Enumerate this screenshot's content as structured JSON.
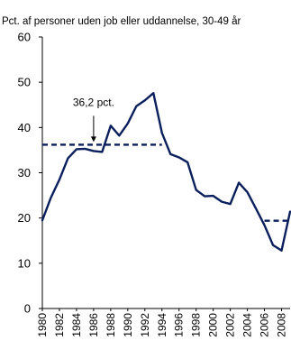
{
  "chart_data": {
    "type": "line",
    "title": "Pct. af personer uden job eller uddannelse, 30-49 år",
    "xlabel": "",
    "ylabel": "",
    "ylim": [
      0,
      60
    ],
    "yticks": [
      "0",
      "10",
      "20",
      "30",
      "40",
      "50",
      "60"
    ],
    "xticks": [
      "1980",
      "1982",
      "1984",
      "1986",
      "1988",
      "1990",
      "1992",
      "1994",
      "1996",
      "1998",
      "2000",
      "2002",
      "2004",
      "2006",
      "2008"
    ],
    "grid": false,
    "line_color": "#0a1f5c",
    "series": [
      {
        "x": [
          1980,
          1981,
          1982,
          1983,
          1984,
          1985,
          1986,
          1987,
          1988,
          1989,
          1990,
          1991,
          1992,
          1993,
          1994,
          1995,
          1996,
          1997,
          1998,
          1999,
          2000,
          2001,
          2002,
          2003,
          2004,
          2005,
          2006,
          2007,
          2008,
          2009
        ],
        "y": [
          19.5,
          24.5,
          28.5,
          33.2,
          35.2,
          35.3,
          34.8,
          34.6,
          40.4,
          38.2,
          40.9,
          44.7,
          46.0,
          47.6,
          38.8,
          34.1,
          33.4,
          32.3,
          26.2,
          24.8,
          24.9,
          23.6,
          23.1,
          27.8,
          25.7,
          22.1,
          18.4,
          14.0,
          12.8,
          21.4
        ]
      }
    ],
    "reference_lines": [
      {
        "from": 1980,
        "to": 1994,
        "value": 36.2,
        "style": "dashed"
      },
      {
        "from": 2006,
        "to": 2009,
        "value": 19.4,
        "style": "dashed"
      }
    ],
    "annotation": {
      "label": "36,2 pct.",
      "x": 1986,
      "y": 36.2
    }
  }
}
